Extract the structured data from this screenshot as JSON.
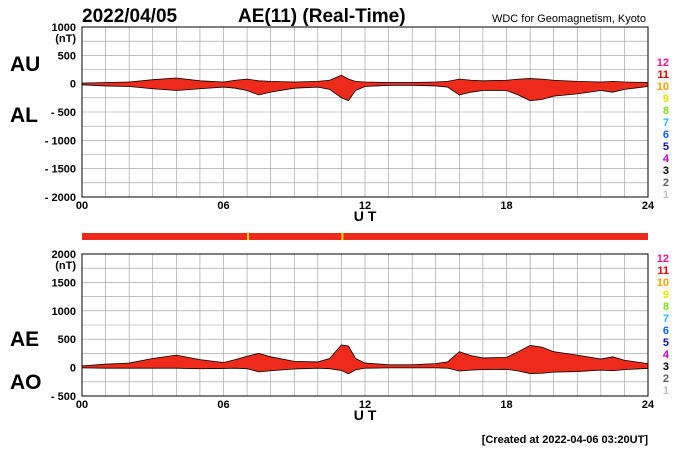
{
  "header": {
    "date": "2022/04/05",
    "title": "AE(11) (Real-Time)",
    "source": "WDC for Geomagnetism, Kyoto"
  },
  "footer": {
    "created": "[Created at 2022-04-06 03:20UT]"
  },
  "legend": {
    "numbers": [
      "12",
      "11",
      "10",
      "9",
      "8",
      "7",
      "6",
      "5",
      "4",
      "3",
      "2",
      "1"
    ],
    "colors": [
      "#ff1493",
      "#e00000",
      "#ffa000",
      "#e6e600",
      "#80e020",
      "#20c0ff",
      "#1060ff",
      "#1010a0",
      "#c000c0",
      "#000000",
      "#606060",
      "#c0c0c0"
    ]
  },
  "status_bar": {
    "fill": "#ee2b1b",
    "marks": [
      7.0,
      11.0
    ]
  },
  "chart_data": [
    {
      "type": "area",
      "name": "AU/AL",
      "labels_top": "AU",
      "labels_bottom": "AL",
      "unit": "(nT)",
      "xlabel": "U T",
      "x_ticks": [
        "00",
        "06",
        "12",
        "18",
        "24"
      ],
      "xlim": [
        0,
        24
      ],
      "ylim": [
        -2000,
        1000
      ],
      "y_ticks": [
        1000,
        500,
        0,
        -500,
        -1000,
        -1500,
        -2000
      ],
      "y_tick_labels": [
        "1000",
        "500",
        "0",
        "- 500",
        "- 1000",
        "- 1500",
        "- 2000"
      ],
      "fill": "#ee2b1b",
      "hours": [
        0,
        1,
        2,
        3,
        4,
        5,
        6,
        6.5,
        7,
        7.5,
        8,
        9,
        10,
        10.5,
        11,
        11.3,
        11.6,
        12,
        13,
        14,
        15,
        15.5,
        16,
        16.5,
        17,
        18,
        18.5,
        19,
        19.5,
        20,
        21,
        22,
        22.5,
        23,
        24
      ],
      "au": [
        10,
        20,
        30,
        70,
        100,
        50,
        30,
        60,
        80,
        50,
        40,
        30,
        40,
        60,
        150,
        80,
        40,
        30,
        20,
        20,
        30,
        40,
        80,
        60,
        50,
        60,
        80,
        90,
        80,
        60,
        40,
        30,
        40,
        30,
        20
      ],
      "al": [
        -20,
        -40,
        -50,
        -90,
        -120,
        -90,
        -60,
        -80,
        -120,
        -200,
        -150,
        -80,
        -60,
        -100,
        -250,
        -300,
        -120,
        -50,
        -30,
        -30,
        -40,
        -60,
        -200,
        -150,
        -120,
        -120,
        -200,
        -300,
        -280,
        -220,
        -180,
        -120,
        -150,
        -100,
        -50
      ]
    },
    {
      "type": "area",
      "name": "AE/AO",
      "labels_top": "AE",
      "labels_bottom": "AO",
      "unit": "(nT)",
      "xlabel": "U T",
      "x_ticks": [
        "00",
        "06",
        "12",
        "18",
        "24"
      ],
      "xlim": [
        0,
        24
      ],
      "ylim": [
        -500,
        2000
      ],
      "y_ticks": [
        2000,
        1500,
        1000,
        500,
        0,
        -500
      ],
      "y_tick_labels": [
        "2000",
        "1500",
        "1000",
        "500",
        "0",
        "- 500"
      ],
      "fill": "#ee2b1b",
      "hours": [
        0,
        1,
        2,
        3,
        4,
        5,
        6,
        6.5,
        7,
        7.5,
        8,
        9,
        10,
        10.5,
        11,
        11.3,
        11.6,
        12,
        13,
        14,
        15,
        15.5,
        16,
        16.5,
        17,
        18,
        18.5,
        19,
        19.5,
        20,
        21,
        22,
        22.5,
        23,
        24
      ],
      "ae": [
        30,
        60,
        80,
        160,
        220,
        140,
        90,
        140,
        200,
        250,
        190,
        110,
        100,
        160,
        400,
        380,
        160,
        80,
        50,
        50,
        70,
        100,
        280,
        210,
        170,
        180,
        280,
        390,
        360,
        280,
        220,
        150,
        190,
        130,
        70
      ],
      "ao": [
        -5,
        -10,
        -10,
        -10,
        -10,
        -20,
        -15,
        -10,
        -20,
        -75,
        -55,
        -25,
        -10,
        -20,
        -50,
        -110,
        -40,
        -10,
        -5,
        -5,
        -5,
        -10,
        -60,
        -45,
        -35,
        -30,
        -60,
        -105,
        -100,
        -80,
        -70,
        -45,
        -55,
        -35,
        -15
      ]
    }
  ]
}
